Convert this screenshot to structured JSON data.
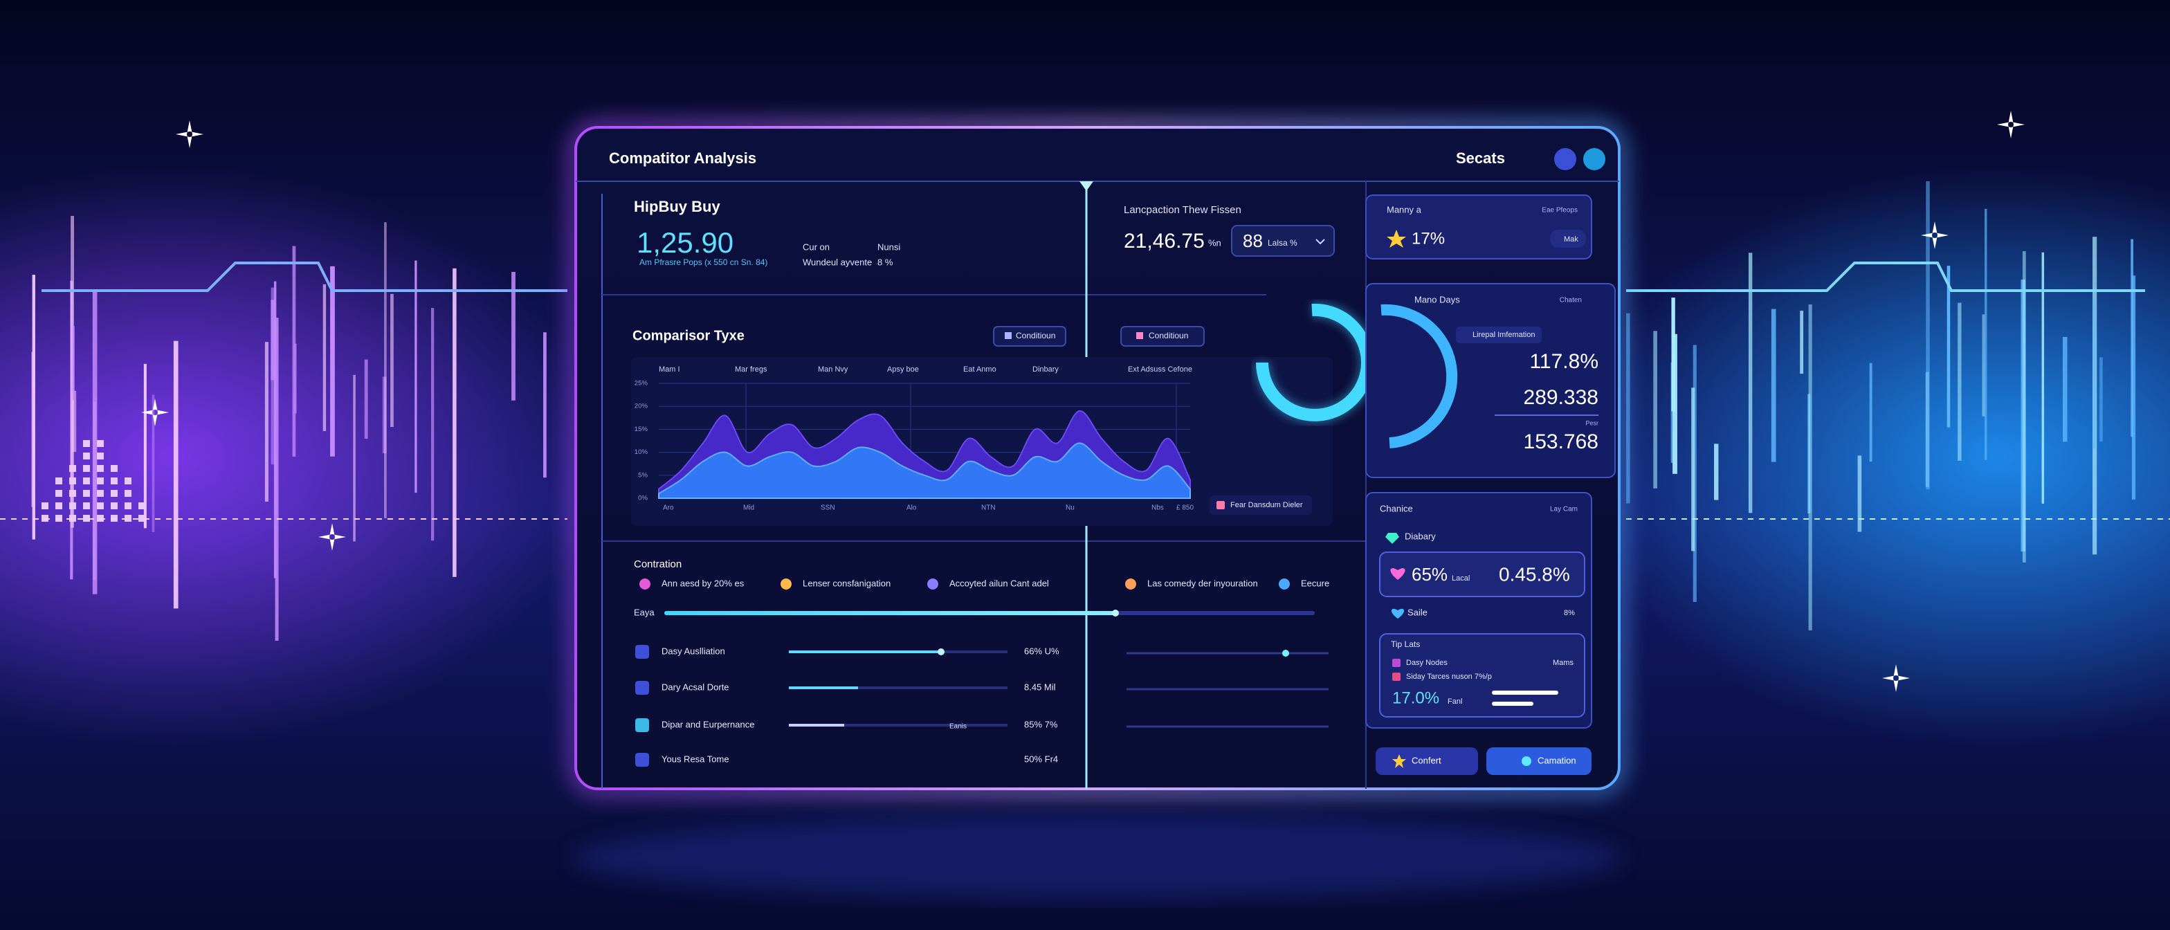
{
  "header": {
    "title": "Compatitor Analysis",
    "section": "Secats"
  },
  "summary": {
    "title": "HipBuy Buy",
    "value": "1,25.90",
    "caption": "Am Pfrasre Pops (x 550 cn Sn. 84)",
    "labels": [
      "Cur on",
      "Wundeul ayvente"
    ],
    "values": [
      "Nunsi",
      "8 %"
    ]
  },
  "lancpaction": {
    "title": "Lancpaction Thew Fissen",
    "value": "21,46.75",
    "unit": "%n",
    "select_value": "88",
    "select_label": "Lalsa %"
  },
  "comparison": {
    "title": "Comparisor Tyxe",
    "buttons": [
      "Conditioun",
      "Conditioun"
    ],
    "legend": "Fear Dansdum Dieler",
    "chart": {
      "type": "area",
      "column_labels": [
        "Mam I",
        "Mar fregs",
        "Man Nvy",
        "Apsy boe",
        "Eat Anmo",
        "Dinbary",
        "Ext Adsuss Cefone"
      ],
      "x_labels": [
        "Aro",
        "Mid",
        "SSN",
        "Alo",
        "NTN",
        "Nu",
        "Nbs",
        "£ 850"
      ],
      "ylim": [
        0,
        25
      ],
      "yticks": [
        {
          "value": 25,
          "label": "25%"
        },
        {
          "value": 20,
          "label": "20%"
        },
        {
          "value": 15,
          "label": "15%"
        },
        {
          "value": 10,
          "label": "10%"
        },
        {
          "value": 5,
          "label": "5%"
        },
        {
          "value": 0,
          "label": "0%"
        }
      ],
      "series": [
        {
          "color": "#4a2bd0",
          "values": [
            2,
            6,
            12,
            18,
            10,
            14,
            16,
            11,
            13,
            17,
            18,
            12,
            8,
            6,
            13,
            9,
            7,
            15,
            12,
            19,
            13,
            8,
            6,
            13,
            4
          ]
        },
        {
          "color": "#2f86ff",
          "values": [
            1,
            4,
            8,
            10,
            7,
            9,
            10,
            7,
            8,
            11,
            10,
            7,
            5,
            4,
            8,
            6,
            5,
            9,
            8,
            12,
            8,
            5,
            4,
            7,
            2
          ]
        }
      ]
    }
  },
  "contration": {
    "title": "Contration",
    "legend": [
      "Ann aesd by 20% es",
      "Lenser consfanigation",
      "Accoyted ailun Cant adel",
      "Las comedy der inyouration",
      "Eecure"
    ],
    "track_label": "Eaya",
    "rows": [
      {
        "label": "Dasy Auslliation",
        "value": "66% U%"
      },
      {
        "label": "Dary Acsal Dorte",
        "value": "8.45 Mil"
      },
      {
        "label": "Dipar and Eurpernance",
        "value": "85% 7%"
      },
      {
        "label": "Yous Resa Tome",
        "value": "50% Fr4"
      }
    ],
    "row_note": "Eanis"
  },
  "right": {
    "card1": {
      "title": "Manny a",
      "note": "Eae Pfeops",
      "value": "17%",
      "chip": "Mak"
    },
    "card2": {
      "title": "Mano Days",
      "note": "Chaten",
      "tag": "Lirepal Imfemation",
      "values": [
        "117.8%",
        "289.338",
        "153.768"
      ],
      "small": "Pesr"
    },
    "card3": {
      "title": "Chanice",
      "note": "Lay Cam",
      "item": "Diabary",
      "big": "65%",
      "big_unit": "Lacal",
      "big_value": "0.45.8%",
      "sale": "Saile",
      "sale_value": "8%",
      "tips": {
        "title": "Tip Lats",
        "item1": "Dasy Nodes",
        "item1_value": "Mams",
        "item2": "Siday Tarces nuson 7%/p",
        "value": "17.0%",
        "unit": "Fanl"
      }
    },
    "buttons": [
      "Confert",
      "Camation"
    ]
  }
}
